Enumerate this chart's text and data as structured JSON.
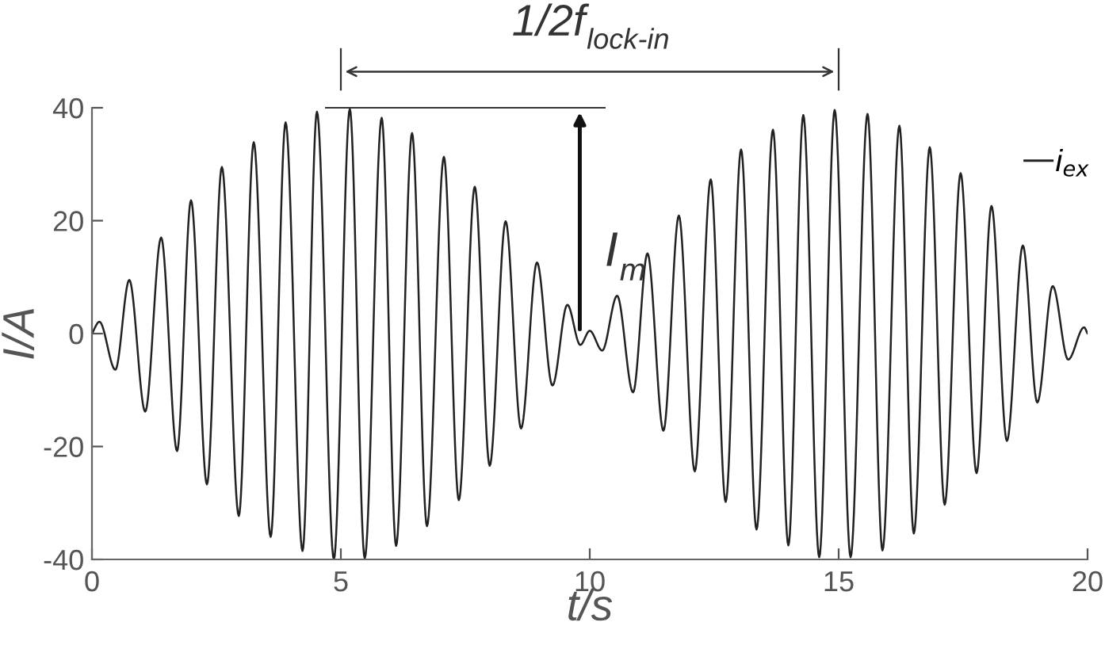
{
  "chart_data": {
    "type": "line",
    "xlabel": "t/s",
    "ylabel": "I/A",
    "xlim": [
      0,
      20
    ],
    "ylim": [
      -40,
      40
    ],
    "xticks": [
      0,
      5,
      10,
      15,
      20
    ],
    "yticks": [
      -40,
      -20,
      0,
      20,
      40
    ],
    "grid": false,
    "legend": "top right",
    "marker": "none",
    "line_style": "solid",
    "annotations": [
      "1/2f$_{lock-in}$",
      "I$_{m}$"
    ],
    "series": [
      {
        "name": "i$_{ex}$",
        "color": "#222222",
        "x": [
          0,
          0.15,
          0.47,
          0.75,
          1.07,
          1.39,
          1.71,
          1.99,
          2.31,
          2.61,
          2.95,
          3.25,
          3.59,
          3.89,
          4.23,
          4.52,
          4.86,
          5.18,
          5.48,
          5.82,
          6.11,
          6.43,
          6.73,
          7.07,
          7.37,
          7.69,
          7.99,
          8.31,
          8.62,
          8.94,
          9.25,
          9.55,
          9.81,
          10.0,
          10.25,
          10.55,
          10.87,
          11.16,
          11.48,
          11.79,
          12.11,
          12.43,
          12.73,
          13.04,
          13.35,
          13.68,
          13.99,
          14.29,
          14.61,
          14.92,
          15.24,
          15.58,
          15.88,
          16.22,
          16.51,
          16.83,
          17.13,
          17.45,
          17.77,
          18.07,
          18.38,
          18.7,
          18.99,
          19.3,
          19.61,
          19.93,
          20
        ],
        "values": [
          0,
          2.1,
          -6.4,
          9.5,
          -13.8,
          17,
          -20.8,
          23.6,
          -26.7,
          29.5,
          -32.3,
          33.9,
          -36,
          37.4,
          -38.5,
          39.3,
          -40,
          39.8,
          -39.8,
          38.2,
          -37.6,
          35.5,
          -34.1,
          31.3,
          -29.5,
          26,
          -23.4,
          19.9,
          -16.8,
          12.6,
          -9.2,
          5.1,
          -2,
          0.5,
          -3,
          6.7,
          -10.4,
          14.2,
          -17.2,
          20.9,
          -24.4,
          27.3,
          -29.8,
          32.6,
          -34.7,
          36.1,
          -37.5,
          38.7,
          -39.6,
          39.6,
          -39.6,
          38.9,
          -38.4,
          36.8,
          -35.4,
          33,
          -30.3,
          28.4,
          -24.7,
          22.6,
          -19,
          15.6,
          -12.2,
          8.4,
          -4.6,
          1.1,
          0
        ]
      }
    ]
  }
}
